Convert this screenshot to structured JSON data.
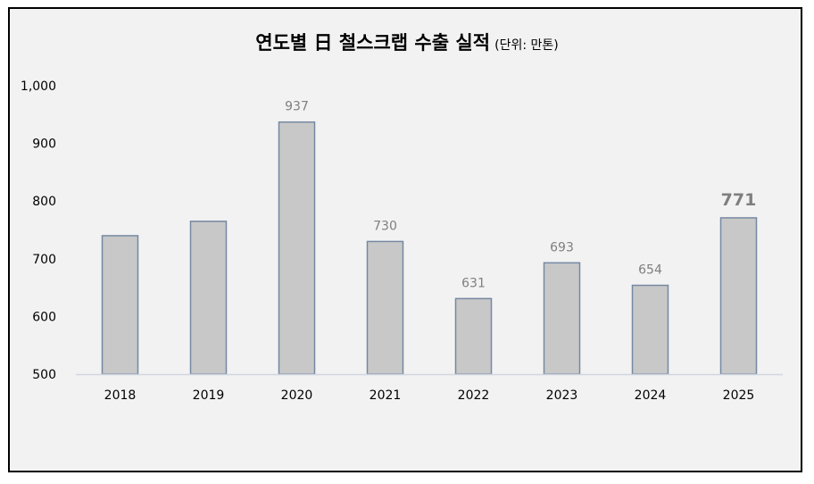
{
  "chart_data": {
    "type": "bar",
    "title": "연도별 日 철스크랩 수출 실적",
    "unit_note": "(단위: 만톤)",
    "categories": [
      "2018",
      "2019",
      "2020",
      "2021",
      "2022",
      "2023",
      "2024",
      "2025"
    ],
    "values": [
      740,
      765,
      937,
      730,
      631,
      693,
      654,
      771
    ],
    "data_labels": [
      "",
      "",
      "937",
      "730",
      "631",
      "693",
      "654",
      "771"
    ],
    "highlight_index": 7,
    "ylim": [
      500,
      1000
    ],
    "yticks": [
      "500",
      "600",
      "700",
      "800",
      "900",
      "1,000"
    ],
    "ytick_values": [
      500,
      600,
      700,
      800,
      900,
      1000
    ],
    "grid": false,
    "legend": "none",
    "colors": {
      "bar_fill": "#c8c8c8",
      "bar_stroke": "#7589a2",
      "baseline": "#d0d6df",
      "label": "#7f7f7f",
      "highlight_label": "#b5642c",
      "background": "#f2f2f2"
    }
  }
}
